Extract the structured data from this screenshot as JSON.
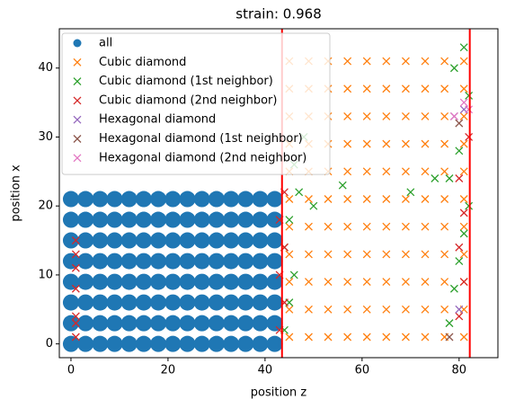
{
  "chart_data": {
    "type": "scatter",
    "title": "strain: 0.968",
    "xlabel": "position z",
    "ylabel": "position x",
    "xlim": [
      -2.4,
      88
    ],
    "ylim": [
      -2,
      45.7
    ],
    "xticks": [
      0,
      20,
      40,
      60,
      80
    ],
    "yticks": [
      0,
      10,
      20,
      30,
      40
    ],
    "grid": false,
    "legend": "upper left",
    "vline_color": "red",
    "vlines": [
      43.5,
      82.2
    ],
    "series": [
      {
        "name": "all",
        "color": "#1f77b4",
        "marker": "o",
        "x": [
          0,
          3,
          6,
          9,
          12,
          15,
          18,
          21,
          24,
          27,
          30,
          33,
          36,
          39,
          42,
          0,
          3,
          6,
          9,
          12,
          15,
          18,
          21,
          24,
          27,
          30,
          33,
          36,
          39,
          42,
          0,
          3,
          6,
          9,
          12,
          15,
          18,
          21,
          24,
          27,
          30,
          33,
          36,
          39,
          42,
          0,
          3,
          6,
          9,
          12,
          15,
          18,
          21,
          24,
          27,
          30,
          33,
          36,
          39,
          42,
          0,
          3,
          6,
          9,
          12,
          15,
          18,
          21,
          24,
          27,
          30,
          33,
          36,
          39,
          42,
          0,
          3,
          6,
          9,
          12,
          15,
          18,
          21,
          24,
          27,
          30,
          33,
          36,
          39,
          42,
          0,
          3,
          6,
          9,
          12,
          15,
          18,
          21,
          24,
          27,
          30,
          33,
          36,
          39,
          42,
          0,
          3,
          6,
          9,
          12,
          15,
          18,
          21,
          24,
          27,
          30,
          33,
          36,
          39,
          42
        ],
        "y": [
          0,
          0,
          0,
          0,
          0,
          0,
          0,
          0,
          0,
          0,
          0,
          0,
          0,
          0,
          0,
          3,
          3,
          3,
          3,
          3,
          3,
          3,
          3,
          3,
          3,
          3,
          3,
          3,
          3,
          3,
          6,
          6,
          6,
          6,
          6,
          6,
          6,
          6,
          6,
          6,
          6,
          6,
          6,
          6,
          6,
          9,
          9,
          9,
          9,
          9,
          9,
          9,
          9,
          9,
          9,
          9,
          9,
          9,
          9,
          9,
          12,
          12,
          12,
          12,
          12,
          12,
          12,
          12,
          12,
          12,
          12,
          12,
          12,
          12,
          12,
          15,
          15,
          15,
          15,
          15,
          15,
          15,
          15,
          15,
          15,
          15,
          15,
          15,
          15,
          15,
          18,
          18,
          18,
          18,
          18,
          18,
          18,
          18,
          18,
          18,
          18,
          18,
          18,
          18,
          18,
          21,
          21,
          21,
          21,
          21,
          21,
          21,
          21,
          21,
          21,
          21,
          21,
          21,
          21,
          21
        ]
      },
      {
        "name": "Cubic diamond",
        "color": "#ff7f0e",
        "marker": "x",
        "x": [
          45,
          49,
          53,
          57,
          61,
          65,
          69,
          73,
          77,
          81,
          45,
          49,
          53,
          57,
          61,
          65,
          69,
          73,
          77,
          81,
          45,
          49,
          53,
          57,
          61,
          65,
          69,
          73,
          77,
          81,
          45,
          49,
          53,
          57,
          61,
          65,
          69,
          73,
          77,
          81,
          45,
          49,
          53,
          57,
          61,
          65,
          69,
          73,
          77,
          81,
          45,
          49,
          53,
          57,
          61,
          65,
          69,
          73,
          77,
          81,
          45,
          49,
          53,
          57,
          61,
          65,
          69,
          73,
          77,
          81,
          45,
          49,
          53,
          57,
          61,
          65,
          69,
          73,
          77,
          81,
          45,
          49,
          53,
          57,
          61,
          65,
          69,
          73,
          77,
          81,
          45,
          49,
          53,
          57,
          61,
          65,
          69,
          73,
          77,
          81,
          45,
          49,
          53,
          57,
          61,
          65,
          69,
          73,
          77,
          81
        ],
        "y": [
          1,
          1,
          1,
          1,
          1,
          1,
          1,
          1,
          1,
          1,
          5,
          5,
          5,
          5,
          5,
          5,
          5,
          5,
          5,
          5,
          9,
          9,
          9,
          9,
          9,
          9,
          9,
          9,
          9,
          9,
          13,
          13,
          13,
          13,
          13,
          13,
          13,
          13,
          13,
          13,
          17,
          17,
          17,
          17,
          17,
          17,
          17,
          17,
          17,
          17,
          21,
          21,
          21,
          21,
          21,
          21,
          21,
          21,
          21,
          21,
          25,
          25,
          25,
          25,
          25,
          25,
          25,
          25,
          25,
          25,
          29,
          29,
          29,
          29,
          29,
          29,
          29,
          29,
          29,
          29,
          33,
          33,
          33,
          33,
          33,
          33,
          33,
          33,
          33,
          33,
          37,
          37,
          37,
          37,
          37,
          37,
          37,
          37,
          37,
          37,
          41,
          41,
          41,
          41,
          41,
          41,
          41,
          41,
          41,
          41
        ]
      },
      {
        "name": "Cubic diamond (1st neighbor)",
        "color": "#2ca02c",
        "marker": "x",
        "x": [
          44,
          45,
          46,
          44,
          45,
          47,
          46,
          48,
          78,
          79,
          80,
          81,
          82,
          78,
          80,
          82,
          79,
          81,
          50,
          56,
          70,
          75
        ],
        "y": [
          2,
          6,
          10,
          14,
          18,
          22,
          26,
          30,
          3,
          8,
          12,
          16,
          20,
          24,
          28,
          36,
          40,
          43,
          20,
          23,
          22,
          24
        ]
      },
      {
        "name": "Cubic diamond (2nd neighbor)",
        "color": "#d62728",
        "marker": "x",
        "x": [
          1,
          1,
          1,
          1,
          1,
          1,
          1,
          43,
          44,
          43,
          44,
          43,
          44,
          80,
          81,
          80,
          81,
          80,
          82
        ],
        "y": [
          1,
          3,
          8,
          11,
          13,
          15,
          4,
          2,
          6,
          10,
          14,
          18,
          22,
          4,
          9,
          14,
          19,
          24,
          30
        ]
      },
      {
        "name": "Hexagonal diamond",
        "color": "#9467bd",
        "marker": "x",
        "x": [
          79,
          81,
          80
        ],
        "y": [
          33,
          34,
          5
        ]
      },
      {
        "name": "Hexagonal diamond (1st neighbor)",
        "color": "#8c564b",
        "marker": "x",
        "x": [
          80,
          78
        ],
        "y": [
          32,
          1
        ]
      },
      {
        "name": "Hexagonal diamond (2nd neighbor)",
        "color": "#e377c2",
        "marker": "x",
        "x": [
          81,
          79,
          82
        ],
        "y": [
          35,
          33,
          34
        ]
      }
    ]
  }
}
